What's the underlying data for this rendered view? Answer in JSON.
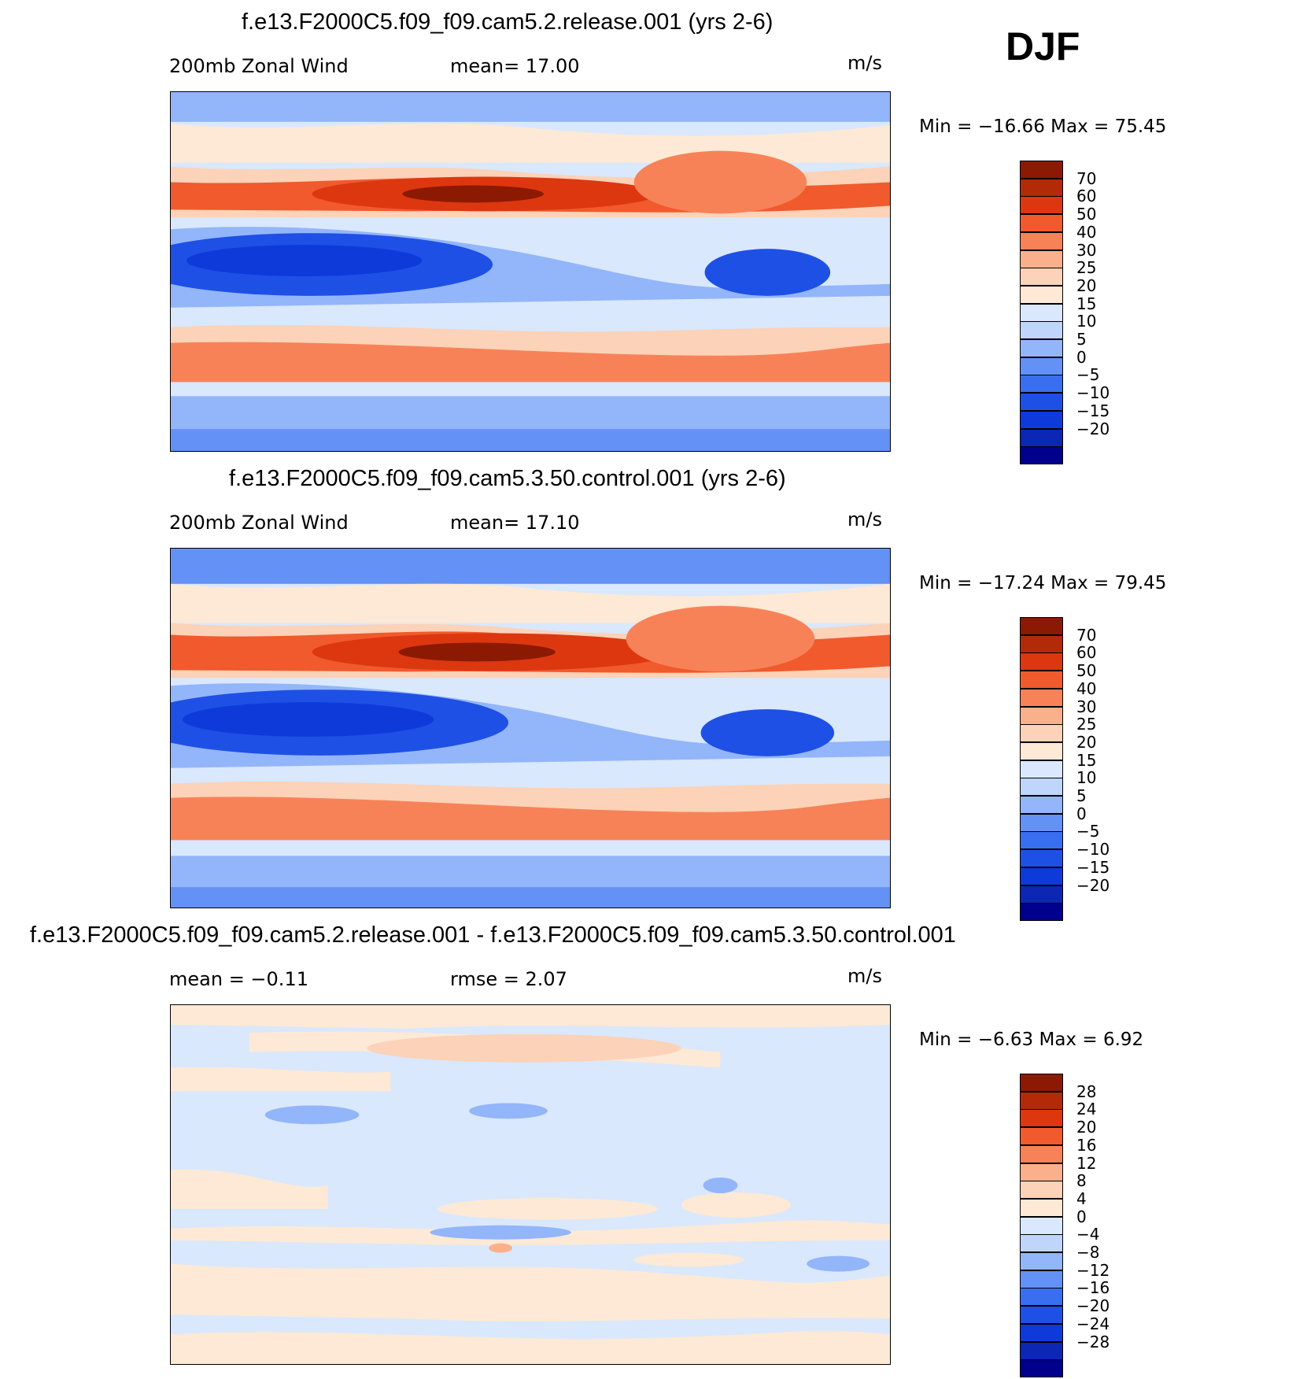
{
  "season": "DJF",
  "colors": {
    "abs_scale": [
      "#00008c",
      "#0b27b4",
      "#0e3ad9",
      "#1e50e6",
      "#3a6ef0",
      "#6491f5",
      "#93b5fa",
      "#c0d5fc",
      "#d9e8fd",
      "#fde9d5",
      "#fcd2b8",
      "#fbb08c",
      "#f88258",
      "#f05a2c",
      "#dd3710",
      "#b22a08",
      "#8c1a03"
    ],
    "diff_scale": [
      "#00008c",
      "#0b27b4",
      "#0e3ad9",
      "#1e50e6",
      "#3a6ef0",
      "#6491f5",
      "#93b5fa",
      "#c0d5fc",
      "#d9e8fd",
      "#fde9d5",
      "#fcd2b8",
      "#fbb08c",
      "#f88258",
      "#f05a2c",
      "#dd3710",
      "#b22a08",
      "#8c1a03"
    ]
  },
  "panels": [
    {
      "title": "f.e13.F2000C5.f09_f09.cam5.2.release.001 (yrs 2-6)",
      "left_label": "200mb Zonal Wind",
      "mid_label": "mean=   17.00",
      "units": "m/s",
      "minmax": "Min  =  −16.66  Max  =    75.45",
      "scale": [
        "70",
        "60",
        "50",
        "40",
        "30",
        "25",
        "20",
        "15",
        "10",
        "5",
        "0",
        "−5",
        "−10",
        "−15",
        "−20"
      ]
    },
    {
      "title": "f.e13.F2000C5.f09_f09.cam5.3.50.control.001 (yrs 2-6)",
      "left_label": "200mb Zonal Wind",
      "mid_label": "mean=   17.10",
      "units": "m/s",
      "minmax": "Min  =  −17.24  Max  =    79.45",
      "scale": [
        "70",
        "60",
        "50",
        "40",
        "30",
        "25",
        "20",
        "15",
        "10",
        "5",
        "0",
        "−5",
        "−10",
        "−15",
        "−20"
      ]
    },
    {
      "title": "f.e13.F2000C5.f09_f09.cam5.2.release.001 - f.e13.F2000C5.f09_f09.cam5.3.50.control.001",
      "left_label": "mean  =    −0.11",
      "mid_label": "rmse  =     2.07",
      "units": "m/s",
      "minmax": "Min  =    −6.63  Max  =     6.92",
      "scale": [
        "28",
        "24",
        "20",
        "16",
        "12",
        "8",
        "4",
        "0",
        "−4",
        "−8",
        "−12",
        "−16",
        "−20",
        "−24",
        "−28"
      ]
    }
  ]
}
